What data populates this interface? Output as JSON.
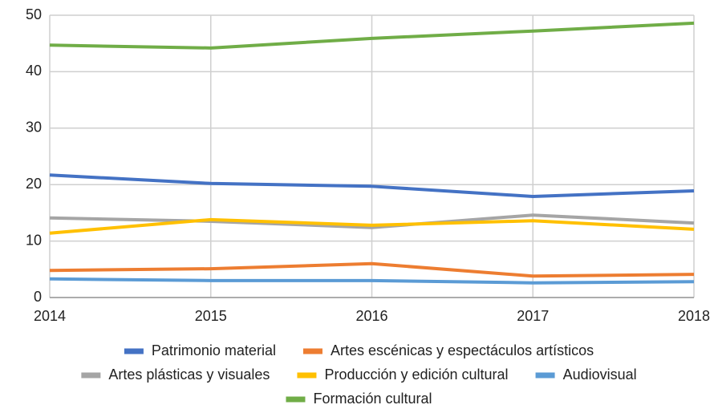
{
  "chart_data": {
    "type": "line",
    "x": [
      2014,
      2015,
      2016,
      2017,
      2018
    ],
    "xlim": [
      2014,
      2018
    ],
    "xticks": [
      2014,
      2015,
      2016,
      2017,
      2018
    ],
    "ylim": [
      0,
      50
    ],
    "yticks": [
      0,
      10,
      20,
      30,
      40,
      50
    ],
    "grid": true,
    "legend": "bottom",
    "series": [
      {
        "name": "Patrimonio material",
        "color": "#4472c4",
        "values": [
          21.7,
          20.2,
          19.7,
          17.9,
          18.9
        ]
      },
      {
        "name": "Artes escénicas y espectáculos artísticos",
        "color": "#ed7d31",
        "values": [
          4.8,
          5.1,
          6.0,
          3.8,
          4.1
        ]
      },
      {
        "name": "Artes plásticas y visuales",
        "color": "#a5a5a5",
        "values": [
          14.1,
          13.5,
          12.4,
          14.6,
          13.2
        ]
      },
      {
        "name": "Producción y edición cultural",
        "color": "#ffc000",
        "values": [
          11.4,
          13.8,
          12.8,
          13.6,
          12.1
        ]
      },
      {
        "name": "Audiovisual",
        "color": "#5b9bd5",
        "values": [
          3.3,
          3.0,
          3.0,
          2.6,
          2.8
        ]
      },
      {
        "name": "Formación cultural",
        "color": "#70ad47",
        "values": [
          44.7,
          44.2,
          45.9,
          47.2,
          48.6
        ]
      }
    ]
  }
}
